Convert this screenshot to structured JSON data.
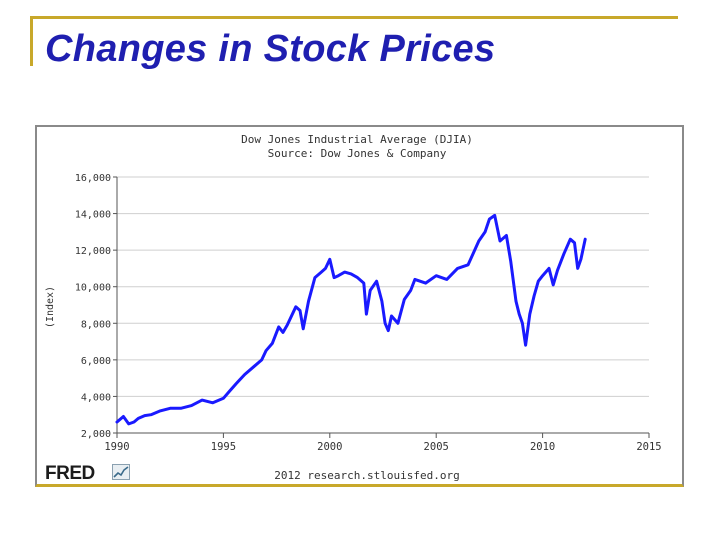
{
  "slide": {
    "title": "Changes in Stock Prices"
  },
  "chart_data": {
    "type": "line",
    "title": "Dow Jones Industrial Average (DJIA)",
    "subtitle": "Source: Dow Jones & Company",
    "xlabel": "",
    "ylabel": "(Index)",
    "xlim": [
      1990,
      2015
    ],
    "ylim": [
      2000,
      16000
    ],
    "x_ticks": [
      1990,
      1995,
      2000,
      2005,
      2010,
      2015
    ],
    "x_tick_labels": [
      "1990",
      "1995",
      "2000",
      "2005",
      "2010",
      "2015"
    ],
    "y_ticks": [
      2000,
      4000,
      6000,
      8000,
      10000,
      12000,
      14000,
      16000
    ],
    "y_tick_labels": [
      "2,000",
      "4,000",
      "6,000",
      "8,000",
      "10,000",
      "12,000",
      "14,000",
      "16,000"
    ],
    "grid": true,
    "series": [
      {
        "name": "DJIA",
        "color": "#1a1aff",
        "x": [
          1990.0,
          1990.3,
          1990.55,
          1990.8,
          1991.0,
          1991.3,
          1991.6,
          1992.0,
          1992.5,
          1993.0,
          1993.5,
          1994.0,
          1994.5,
          1995.0,
          1995.3,
          1995.6,
          1996.0,
          1996.4,
          1996.8,
          1997.0,
          1997.3,
          1997.6,
          1997.8,
          1998.0,
          1998.4,
          1998.6,
          1998.75,
          1999.0,
          1999.3,
          1999.6,
          1999.8,
          2000.0,
          2000.2,
          2000.4,
          2000.7,
          2001.0,
          2001.3,
          2001.6,
          2001.72,
          2001.9,
          2002.2,
          2002.45,
          2002.6,
          2002.75,
          2002.9,
          2003.2,
          2003.5,
          2003.8,
          2004.0,
          2004.5,
          2005.0,
          2005.5,
          2006.0,
          2006.5,
          2007.0,
          2007.3,
          2007.5,
          2007.75,
          2008.0,
          2008.3,
          2008.5,
          2008.75,
          2008.9,
          2009.05,
          2009.2,
          2009.4,
          2009.6,
          2009.8,
          2010.0,
          2010.3,
          2010.5,
          2010.7,
          2011.0,
          2011.3,
          2011.5,
          2011.65,
          2011.8,
          2012.0
        ],
        "values": [
          2600,
          2900,
          2500,
          2600,
          2800,
          2950,
          3000,
          3200,
          3350,
          3350,
          3500,
          3800,
          3650,
          3900,
          4300,
          4700,
          5200,
          5600,
          6000,
          6500,
          6900,
          7800,
          7500,
          7900,
          8900,
          8700,
          7700,
          9200,
          10500,
          10800,
          11000,
          11500,
          10500,
          10600,
          10800,
          10700,
          10500,
          10200,
          8500,
          9800,
          10300,
          9200,
          8000,
          7600,
          8400,
          8000,
          9300,
          9800,
          10400,
          10200,
          10600,
          10400,
          11000,
          11200,
          12500,
          13000,
          13700,
          13900,
          12500,
          12800,
          11400,
          9200,
          8500,
          8000,
          6800,
          8500,
          9500,
          10300,
          10600,
          11000,
          10100,
          10900,
          11800,
          12600,
          12400,
          11000,
          11500,
          12600
        ]
      }
    ],
    "footer_source": "2012 research.stlouisfed.org",
    "logo_text": "FRED"
  }
}
